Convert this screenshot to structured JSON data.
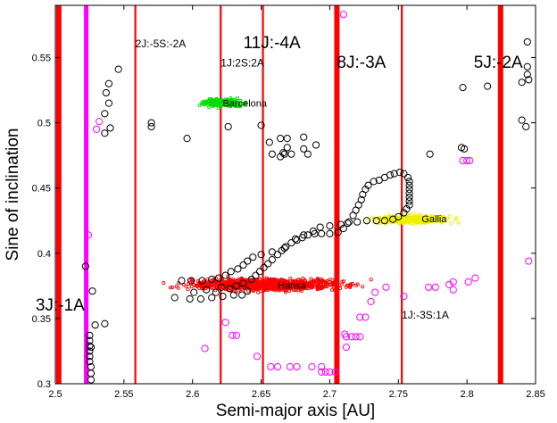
{
  "chart_data": {
    "type": "scatter",
    "xlabel": "Semi-major axis [AU]",
    "ylabel": "Sine of inclination",
    "xlim": [
      2.5,
      2.85
    ],
    "ylim": [
      0.3,
      0.59
    ],
    "xticks": [
      "2.5",
      "2.55",
      "2.6",
      "2.65",
      "2.7",
      "2.75",
      "2.8",
      "2.85"
    ],
    "yticks": [
      "0.3",
      "0.35",
      "0.4",
      "0.45",
      "0.5",
      "0.55"
    ],
    "grid": false,
    "colors": {
      "resonance": "#ff0000",
      "magenta": "#ff00ff",
      "black_orbits": "#000000",
      "hansa": "#ff0000",
      "barcelona": "#00dd00",
      "gallia": "#eeee00"
    },
    "resonances": [
      {
        "label": "3J:-1A",
        "a": 2.5025,
        "width": "thick"
      },
      {
        "label": "",
        "a": 2.5225,
        "width": "magenta"
      },
      {
        "label": "2J:-5S:-2A",
        "a": 2.5583,
        "width": "thin"
      },
      {
        "label": "1J:2S:2A",
        "a": 2.6205,
        "width": "thin"
      },
      {
        "label": "11J:-4A",
        "a": 2.6513,
        "width": "thin"
      },
      {
        "label": "8J:-3A",
        "a": 2.7052,
        "width": "thick"
      },
      {
        "label": "1J:-3S:1A",
        "a": 2.7525,
        "width": "thin"
      },
      {
        "label": "5J:-2A",
        "a": 2.8245,
        "width": "thick"
      }
    ],
    "families": [
      {
        "label": "Hansa",
        "a": 2.66,
        "sini": 0.3755
      },
      {
        "label": "Barcelona",
        "a": 2.62,
        "sini": 0.515
      },
      {
        "label": "Gallia",
        "a": 2.765,
        "sini": 0.4265
      }
    ],
    "series": [
      {
        "points": [
          [
            2.522,
            0.39
          ],
          [
            2.527,
            0.371
          ],
          [
            2.529,
            0.345
          ],
          [
            2.525,
            0.337
          ],
          [
            2.525,
            0.333
          ],
          [
            2.525,
            0.329
          ],
          [
            2.525,
            0.325
          ],
          [
            2.525,
            0.321
          ],
          [
            2.525,
            0.317
          ],
          [
            2.526,
            0.313
          ],
          [
            2.526,
            0.308
          ],
          [
            2.526,
            0.303
          ],
          [
            2.536,
            0.346
          ],
          [
            2.526,
            0.328
          ],
          [
            2.546,
            0.541
          ],
          [
            2.539,
            0.53
          ],
          [
            2.537,
            0.523
          ],
          [
            2.539,
            0.515
          ],
          [
            2.536,
            0.507
          ],
          [
            2.54,
            0.496
          ],
          [
            2.536,
            0.492
          ],
          [
            2.57,
            0.5
          ],
          [
            2.57,
            0.497
          ],
          [
            2.596,
            0.488
          ],
          [
            2.626,
            0.497
          ],
          [
            2.65,
            0.498
          ],
          [
            2.656,
            0.485
          ],
          [
            2.664,
            0.488
          ],
          [
            2.669,
            0.488
          ],
          [
            2.681,
            0.489
          ],
          [
            2.69,
            0.483
          ],
          [
            2.669,
            0.481
          ],
          [
            2.681,
            0.48
          ],
          [
            2.658,
            0.476
          ],
          [
            2.666,
            0.477
          ],
          [
            2.664,
            0.474
          ],
          [
            2.667,
            0.476
          ],
          [
            2.672,
            0.476
          ],
          [
            2.684,
            0.476
          ],
          [
            2.773,
            0.476
          ],
          [
            2.796,
            0.481
          ],
          [
            2.798,
            0.48
          ],
          [
            2.797,
            0.527
          ],
          [
            2.815,
            0.528
          ],
          [
            2.844,
            0.562
          ],
          [
            2.844,
            0.543
          ],
          [
            2.844,
            0.537
          ],
          [
            2.845,
            0.533
          ],
          [
            2.84,
            0.531
          ],
          [
            2.84,
            0.502
          ],
          [
            2.843,
            0.497
          ],
          [
            2.587,
            0.366
          ],
          [
            2.598,
            0.365
          ],
          [
            2.606,
            0.365
          ],
          [
            2.614,
            0.366
          ],
          [
            2.622,
            0.367
          ],
          [
            2.63,
            0.368
          ],
          [
            2.636,
            0.368
          ],
          [
            2.64,
            0.371
          ],
          [
            2.617,
            0.37
          ],
          [
            2.61,
            0.372
          ],
          [
            2.601,
            0.37
          ],
          [
            2.627,
            0.373
          ],
          [
            2.621,
            0.374
          ],
          [
            2.632,
            0.375
          ],
          [
            2.637,
            0.377
          ],
          [
            2.643,
            0.38
          ],
          [
            2.646,
            0.383
          ],
          [
            2.649,
            0.386
          ],
          [
            2.652,
            0.389
          ],
          [
            2.655,
            0.392
          ],
          [
            2.658,
            0.395
          ],
          [
            2.662,
            0.399
          ],
          [
            2.665,
            0.402
          ],
          [
            2.668,
            0.405
          ],
          [
            2.672,
            0.408
          ],
          [
            2.676,
            0.41
          ],
          [
            2.68,
            0.412
          ],
          [
            2.684,
            0.414
          ],
          [
            2.689,
            0.415
          ],
          [
            2.694,
            0.415
          ],
          [
            2.7,
            0.415
          ],
          [
            2.706,
            0.416
          ],
          [
            2.71,
            0.419
          ],
          [
            2.714,
            0.424
          ],
          [
            2.717,
            0.429
          ],
          [
            2.719,
            0.433
          ],
          [
            2.721,
            0.437
          ],
          [
            2.723,
            0.441
          ],
          [
            2.724,
            0.445
          ],
          [
            2.726,
            0.449
          ],
          [
            2.728,
            0.452
          ],
          [
            2.732,
            0.455
          ],
          [
            2.736,
            0.456
          ],
          [
            2.74,
            0.458
          ],
          [
            2.744,
            0.46
          ],
          [
            2.747,
            0.461
          ],
          [
            2.751,
            0.462
          ],
          [
            2.754,
            0.461
          ],
          [
            2.757,
            0.458
          ],
          [
            2.758,
            0.455
          ],
          [
            2.758,
            0.452
          ],
          [
            2.758,
            0.449
          ],
          [
            2.758,
            0.446
          ],
          [
            2.758,
            0.443
          ],
          [
            2.758,
            0.44
          ],
          [
            2.758,
            0.437
          ],
          [
            2.756,
            0.434
          ],
          [
            2.754,
            0.431
          ],
          [
            2.75,
            0.428
          ],
          [
            2.746,
            0.426
          ],
          [
            2.74,
            0.425
          ],
          [
            2.734,
            0.425
          ],
          [
            2.727,
            0.425
          ],
          [
            2.72,
            0.424
          ],
          [
            2.713,
            0.423
          ],
          [
            2.708,
            0.422
          ],
          [
            2.7,
            0.421
          ],
          [
            2.693,
            0.42
          ],
          [
            2.688,
            0.417
          ],
          [
            2.681,
            0.414
          ],
          [
            2.675,
            0.411
          ],
          [
            2.667,
            0.404
          ],
          [
            2.658,
            0.401
          ],
          [
            2.65,
            0.399
          ],
          [
            2.644,
            0.397
          ],
          [
            2.64,
            0.394
          ],
          [
            2.637,
            0.391
          ],
          [
            2.633,
            0.388
          ],
          [
            2.628,
            0.386
          ],
          [
            2.624,
            0.383
          ],
          [
            2.619,
            0.381
          ],
          [
            2.614,
            0.38
          ],
          [
            2.607,
            0.379
          ],
          [
            2.599,
            0.379
          ],
          [
            2.592,
            0.379
          ]
        ],
        "marker": "circle-open",
        "color": "#000000"
      },
      {
        "points": [
          [
            2.524,
            0.414
          ],
          [
            2.532,
            0.501
          ],
          [
            2.53,
            0.495
          ],
          [
            2.609,
            0.327
          ],
          [
            2.624,
            0.347
          ],
          [
            2.629,
            0.337
          ],
          [
            2.632,
            0.337
          ],
          [
            2.647,
            0.321
          ],
          [
            2.657,
            0.313
          ],
          [
            2.662,
            0.313
          ],
          [
            2.671,
            0.313
          ],
          [
            2.676,
            0.313
          ],
          [
            2.687,
            0.313
          ],
          [
            2.694,
            0.313
          ],
          [
            2.694,
            0.309
          ],
          [
            2.697,
            0.309
          ],
          [
            2.7,
            0.309
          ],
          [
            2.704,
            0.309
          ],
          [
            2.71,
            0.583
          ],
          [
            2.712,
            0.336
          ],
          [
            2.716,
            0.336
          ],
          [
            2.719,
            0.336
          ],
          [
            2.722,
            0.336
          ],
          [
            2.711,
            0.338
          ],
          [
            2.712,
            0.328
          ],
          [
            2.722,
            0.351
          ],
          [
            2.726,
            0.351
          ],
          [
            2.73,
            0.363
          ],
          [
            2.733,
            0.37
          ],
          [
            2.741,
            0.374
          ],
          [
            2.754,
            0.367
          ],
          [
            2.772,
            0.374
          ],
          [
            2.777,
            0.374
          ],
          [
            2.787,
            0.376
          ],
          [
            2.79,
            0.378
          ],
          [
            2.801,
            0.378
          ],
          [
            2.806,
            0.381
          ],
          [
            2.797,
            0.471
          ],
          [
            2.802,
            0.471
          ],
          [
            2.8,
            0.471
          ],
          [
            2.845,
            0.394
          ],
          [
            2.79,
            0.372
          ]
        ],
        "marker": "circle-open",
        "color": "#ff00ff"
      }
    ]
  }
}
